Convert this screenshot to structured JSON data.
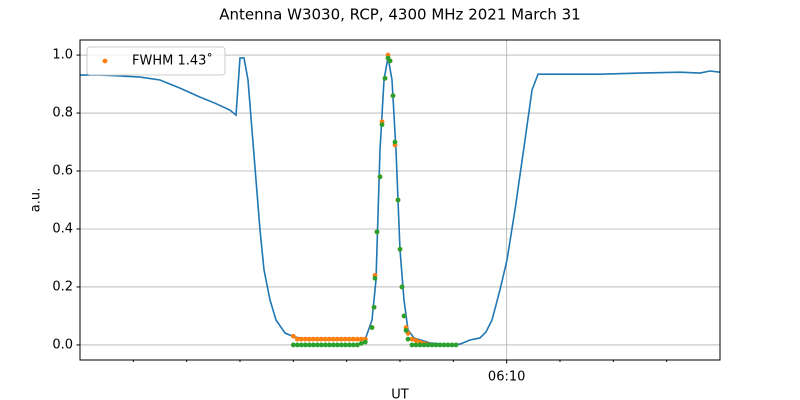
{
  "chart_data": {
    "type": "line",
    "title": "Antenna W3030, RCP, 4300 MHz 2021 March 31",
    "x_label": "UT",
    "y_label": "a.u.",
    "xlim": [
      2,
      14
    ],
    "ylim": [
      -0.052,
      1.052
    ],
    "xticks": [
      {
        "value": 10,
        "label": "06:10"
      }
    ],
    "xminor_ticks": [
      3,
      4,
      5,
      6,
      7,
      8,
      9,
      11,
      12,
      13
    ],
    "yticks": [
      {
        "value": 0,
        "label": "0.0"
      },
      {
        "value": 0.2,
        "label": "0.2"
      },
      {
        "value": 0.4,
        "label": "0.4"
      },
      {
        "value": 0.6,
        "label": "0.6"
      },
      {
        "value": 0.8,
        "label": "0.8"
      },
      {
        "value": 1.0,
        "label": "1.0"
      }
    ],
    "grid": true,
    "legend_position": "upper left",
    "line": {
      "color": "#1f77b4",
      "x": [
        2.0,
        2.375,
        2.75,
        3.125,
        3.5,
        3.875,
        4.25,
        4.531,
        4.813,
        4.925,
        5.0,
        5.075,
        5.15,
        5.225,
        5.3,
        5.375,
        5.45,
        5.563,
        5.675,
        5.844,
        6.013,
        6.313,
        6.875,
        7.344,
        7.475,
        7.55,
        7.625,
        7.7,
        7.775,
        7.85,
        7.925,
        8.0,
        8.075,
        8.15,
        8.263,
        8.563,
        8.938,
        9.125,
        9.313,
        9.5,
        9.613,
        9.725,
        9.875,
        10.006,
        10.156,
        10.344,
        10.475,
        10.588,
        11.0,
        11.75,
        12.5,
        13.25,
        13.625,
        13.813,
        14.0
      ],
      "values": [
        0.931,
        0.931,
        0.928,
        0.924,
        0.914,
        0.886,
        0.855,
        0.834,
        0.81,
        0.793,
        0.99,
        0.99,
        0.914,
        0.741,
        0.569,
        0.397,
        0.259,
        0.155,
        0.086,
        0.041,
        0.028,
        0.017,
        0.017,
        0.017,
        0.086,
        0.224,
        0.672,
        0.914,
        0.993,
        0.914,
        0.672,
        0.328,
        0.155,
        0.052,
        0.024,
        0.007,
        0,
        0.003,
        0.017,
        0.024,
        0.045,
        0.086,
        0.19,
        0.293,
        0.466,
        0.707,
        0.879,
        0.934,
        0.934,
        0.934,
        0.938,
        0.941,
        0.938,
        0.945,
        0.941
      ]
    },
    "points_x": [
      6.0,
      6.075,
      6.15,
      6.225,
      6.3,
      6.375,
      6.45,
      6.525,
      6.6,
      6.675,
      6.75,
      6.825,
      6.9,
      6.975,
      7.05,
      7.125,
      7.2,
      7.275,
      7.35,
      7.475,
      7.513,
      7.531,
      7.569,
      7.625,
      7.663,
      7.719,
      7.775,
      7.813,
      7.869,
      7.906,
      7.963,
      8.0,
      8.038,
      8.075,
      8.113,
      8.15,
      8.225,
      8.3,
      8.375,
      8.45,
      8.525,
      8.6,
      8.675,
      8.75,
      8.825,
      8.9,
      8.975,
      9.05
    ],
    "series": [
      {
        "name": "FWHM 1.43˚",
        "color": "#ff7f0e",
        "values": [
          0.03,
          0.02,
          0.02,
          0.02,
          0.02,
          0.02,
          0.02,
          0.02,
          0.02,
          0.02,
          0.02,
          0.02,
          0.02,
          0.02,
          0.02,
          0.02,
          0.02,
          0.02,
          0.02,
          0.06,
          0.13,
          0.24,
          0.39,
          0.58,
          0.77,
          0.92,
          1.0,
          0.98,
          0.86,
          0.69,
          0.5,
          0.33,
          0.2,
          0.1,
          0.06,
          0.04,
          0.02,
          0.015,
          0.01,
          0.005,
          0.002,
          null,
          null,
          null,
          null,
          null,
          null,
          null
        ]
      },
      {
        "color": "#2ca02c",
        "values": [
          0,
          0,
          0,
          0,
          0,
          0,
          0,
          0,
          0,
          0,
          0,
          0,
          0,
          0,
          0,
          0,
          0,
          0.005,
          0.01,
          0.06,
          0.13,
          0.23,
          0.39,
          0.58,
          0.76,
          0.92,
          0.99,
          0.98,
          0.86,
          0.7,
          0.5,
          0.33,
          0.2,
          0.1,
          0.05,
          0.02,
          0,
          0,
          0,
          0,
          0,
          0,
          0,
          0,
          0,
          0,
          0,
          0
        ]
      }
    ]
  }
}
